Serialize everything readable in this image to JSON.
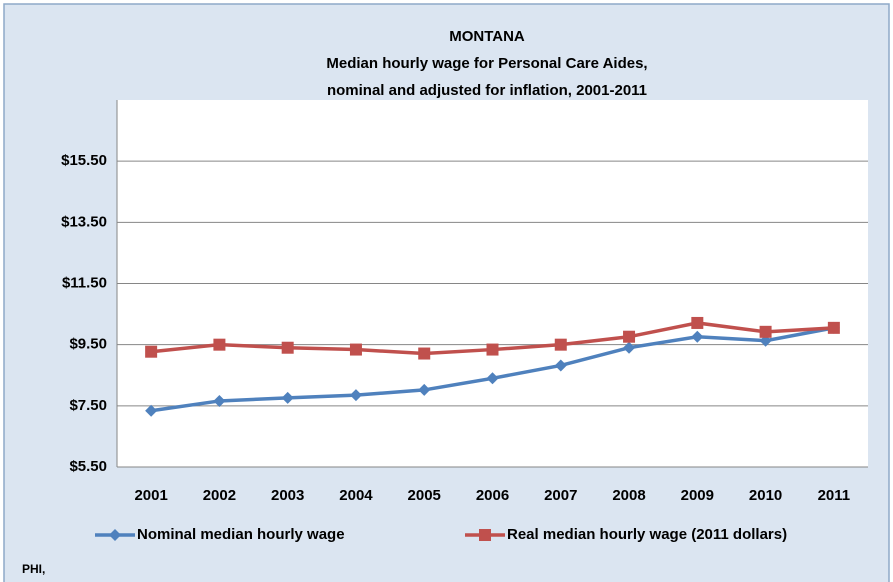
{
  "chart_data": {
    "type": "line",
    "title": [
      "MONTANA",
      "Median hourly wage for Personal Care Aides,",
      "nominal and adjusted for inflation, 2001-2011"
    ],
    "categories": [
      "2001",
      "2002",
      "2003",
      "2004",
      "2005",
      "2006",
      "2007",
      "2008",
      "2009",
      "2010",
      "2011"
    ],
    "series": [
      {
        "name": "Nominal median hourly wage",
        "color": "#4f81bd",
        "marker": "diamond",
        "values": [
          7.34,
          7.66,
          7.76,
          7.85,
          8.02,
          8.4,
          8.82,
          9.4,
          9.76,
          9.63,
          10.05
        ]
      },
      {
        "name": "Real median hourly wage (2011 dollars)",
        "color": "#c0504d",
        "marker": "square",
        "values": [
          9.27,
          9.5,
          9.4,
          9.34,
          9.21,
          9.34,
          9.5,
          9.76,
          10.21,
          9.92,
          10.05
        ]
      }
    ],
    "ylim": [
      5.5,
      17.5
    ],
    "yticks": [
      {
        "value": 5.5,
        "label": "$5.50"
      },
      {
        "value": 7.5,
        "label": "$7.50"
      },
      {
        "value": 9.5,
        "label": "$9.50"
      },
      {
        "value": 11.5,
        "label": "$11.50"
      },
      {
        "value": 13.5,
        "label": "$13.50"
      },
      {
        "value": 15.5,
        "label": "$15.50"
      }
    ],
    "grid": true,
    "legend": "bottom",
    "source": "PHI,"
  }
}
